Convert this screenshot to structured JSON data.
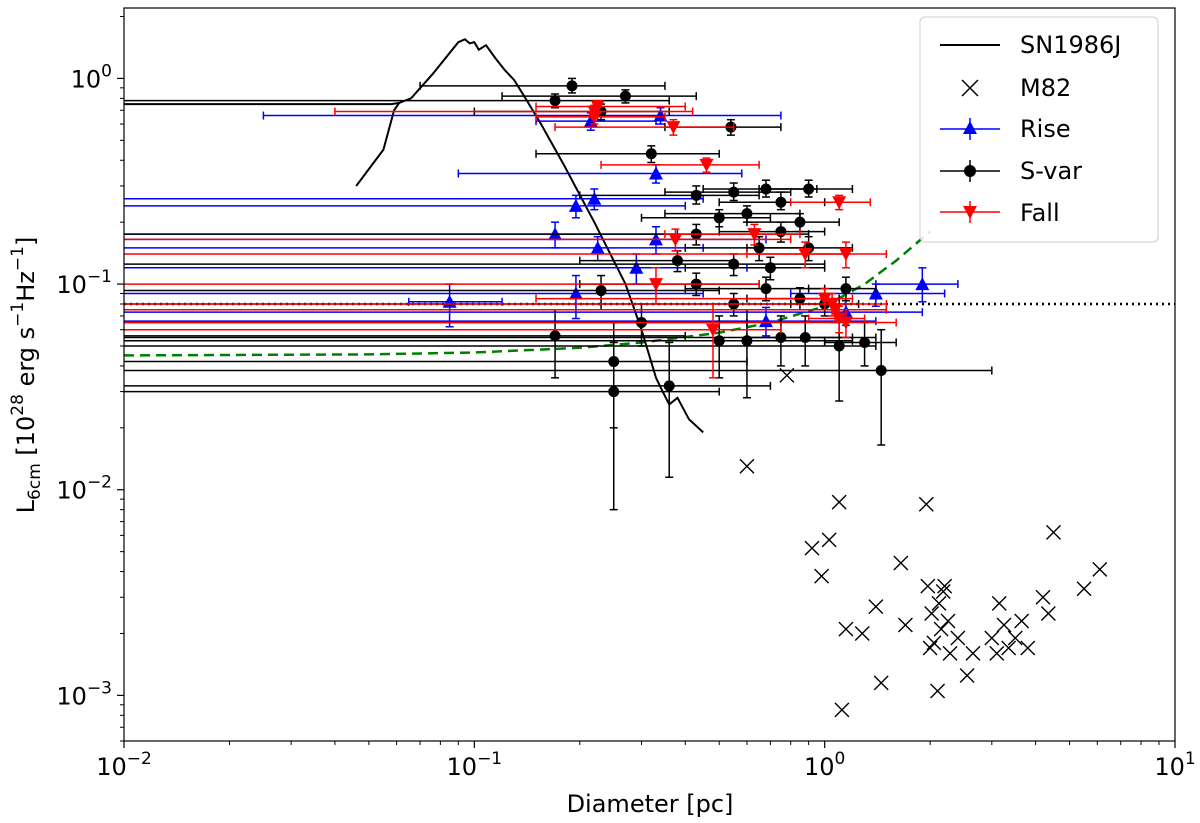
{
  "chart_data": {
    "type": "scatter",
    "title": "",
    "xlabel": "Diameter [pc]",
    "ylabel": "L6cm [10^28 erg s^-1 Hz^-1]",
    "ylabel_parts": {
      "L": "L",
      "sub": "6cm",
      "open": " [10",
      "exp1": "28",
      "unit1": " erg s",
      "exp2": "−1",
      "unit2": "Hz",
      "exp3": "−1",
      "close": "]"
    },
    "xscale": "log",
    "yscale": "log",
    "xlim": [
      0.01,
      10
    ],
    "ylim": [
      0.0006,
      2.2
    ],
    "x_ticks": [
      {
        "value": 0.01,
        "base": "10",
        "exp": "−2"
      },
      {
        "value": 0.1,
        "base": "10",
        "exp": "−1"
      },
      {
        "value": 1,
        "base": "10",
        "exp": "0"
      },
      {
        "value": 10,
        "base": "10",
        "exp": "1"
      }
    ],
    "y_ticks": [
      {
        "value": 0.001,
        "base": "10",
        "exp": "−3"
      },
      {
        "value": 0.01,
        "base": "10",
        "exp": "−2"
      },
      {
        "value": 0.1,
        "base": "10",
        "exp": "−1"
      },
      {
        "value": 1,
        "base": "10",
        "exp": "0"
      }
    ],
    "legend": {
      "placement": "top-right",
      "entries": [
        {
          "label": "SN1986J",
          "kind": "line",
          "color": "#000000"
        },
        {
          "label": "M82",
          "kind": "x",
          "color": "#000000"
        },
        {
          "label": "Rise",
          "kind": "triangle-up",
          "color": "#0000ff"
        },
        {
          "label": "S-var",
          "kind": "circle",
          "color": "#000000"
        },
        {
          "label": "Fall",
          "kind": "triangle-down",
          "color": "#ff0000"
        }
      ]
    },
    "reference_lines": {
      "dotted_horizontal": {
        "y": 0.08,
        "color": "#000000"
      },
      "green_dashed": {
        "color": "#008000",
        "points": [
          [
            0.01,
            0.045
          ],
          [
            0.05,
            0.0455
          ],
          [
            0.1,
            0.0465
          ],
          [
            0.2,
            0.049
          ],
          [
            0.3,
            0.052
          ],
          [
            0.5,
            0.058
          ],
          [
            0.7,
            0.065
          ],
          [
            1.0,
            0.078
          ],
          [
            1.3,
            0.1
          ],
          [
            1.6,
            0.13
          ],
          [
            2.0,
            0.18
          ]
        ]
      }
    },
    "series": [
      {
        "name": "SN1986J",
        "type": "line",
        "color": "#000000",
        "x": [
          0.01,
          0.058,
          0.061,
          0.066,
          0.076,
          0.09,
          0.094,
          0.097,
          0.1,
          0.103,
          0.108,
          0.115,
          0.122,
          0.13,
          0.14,
          0.155,
          0.18,
          0.22,
          0.27,
          0.3,
          0.33,
          0.345,
          0.36,
          0.38,
          0.41,
          0.45
        ],
        "y": [
          0.75,
          0.75,
          0.76,
          0.8,
          1.05,
          1.5,
          1.55,
          1.48,
          1.5,
          1.38,
          1.45,
          1.25,
          1.1,
          0.98,
          0.8,
          0.6,
          0.38,
          0.2,
          0.1,
          0.06,
          0.035,
          0.03,
          0.026,
          0.028,
          0.022,
          0.019
        ]
      },
      {
        "name": "SN1986J-early",
        "type": "line",
        "color": "#000000",
        "x": [
          0.046,
          0.055,
          0.059,
          0.061
        ],
        "y": [
          0.3,
          0.45,
          0.7,
          0.76
        ]
      },
      {
        "name": "M82",
        "type": "x",
        "color": "#000000",
        "x": [
          0.6,
          0.78,
          0.92,
          0.98,
          1.03,
          1.1,
          1.15,
          1.28,
          1.4,
          1.45,
          1.65,
          1.7,
          1.95,
          1.97,
          2.0,
          2.02,
          2.05,
          2.1,
          2.12,
          2.15,
          2.18,
          2.2,
          2.25,
          2.28,
          2.4,
          2.55,
          2.65,
          3.0,
          3.1,
          3.15,
          3.25,
          3.35,
          3.5,
          3.65,
          3.8,
          4.2,
          4.35,
          4.5,
          5.5,
          6.1,
          1.12
        ],
        "y": [
          0.013,
          0.036,
          0.0052,
          0.0038,
          0.0057,
          0.0087,
          0.0021,
          0.002,
          0.0027,
          0.00115,
          0.0044,
          0.0022,
          0.0085,
          0.0034,
          0.0017,
          0.0025,
          0.0018,
          0.00105,
          0.0028,
          0.0021,
          0.0032,
          0.0034,
          0.0023,
          0.0016,
          0.0019,
          0.00125,
          0.0016,
          0.0019,
          0.0016,
          0.0028,
          0.0022,
          0.0017,
          0.0019,
          0.0023,
          0.0017,
          0.003,
          0.0025,
          0.0062,
          0.0033,
          0.0041,
          0.00085
        ]
      },
      {
        "name": "Rise",
        "type": "errorbar",
        "marker": "triangle-up",
        "color": "#0000ff",
        "points": [
          {
            "x": 0.34,
            "y": 0.66,
            "xlo": 0.025,
            "xhi": 0.75,
            "ylo": 0.6,
            "yhi": 0.72
          },
          {
            "x": 0.215,
            "y": 0.62,
            "xlo": 0.15,
            "xhi": 0.33,
            "ylo": 0.56,
            "yhi": 0.68
          },
          {
            "x": 0.33,
            "y": 0.345,
            "xlo": 0.09,
            "xhi": 0.58,
            "ylo": 0.31,
            "yhi": 0.38
          },
          {
            "x": 0.22,
            "y": 0.26,
            "xlo": 0.01,
            "xhi": 0.45,
            "ylo": 0.23,
            "yhi": 0.29
          },
          {
            "x": 0.195,
            "y": 0.24,
            "xlo": 0.01,
            "xhi": 0.4,
            "ylo": 0.21,
            "yhi": 0.27
          },
          {
            "x": 0.17,
            "y": 0.175,
            "xlo": 0.01,
            "xhi": 0.38,
            "ylo": 0.15,
            "yhi": 0.2
          },
          {
            "x": 0.225,
            "y": 0.15,
            "xlo": 0.01,
            "xhi": 0.45,
            "ylo": 0.13,
            "yhi": 0.17
          },
          {
            "x": 0.33,
            "y": 0.165,
            "xlo": 0.01,
            "xhi": 0.68,
            "ylo": 0.14,
            "yhi": 0.19
          },
          {
            "x": 0.29,
            "y": 0.12,
            "xlo": 0.01,
            "xhi": 0.6,
            "ylo": 0.1,
            "yhi": 0.14
          },
          {
            "x": 0.085,
            "y": 0.082,
            "xlo": 0.065,
            "xhi": 0.12,
            "ylo": 0.062,
            "yhi": 0.1
          },
          {
            "x": 0.195,
            "y": 0.09,
            "xlo": 0.01,
            "xhi": 0.45,
            "ylo": 0.068,
            "yhi": 0.11
          },
          {
            "x": 0.68,
            "y": 0.066,
            "xlo": 0.01,
            "xhi": 1.4,
            "ylo": 0.056,
            "yhi": 0.077
          },
          {
            "x": 1.4,
            "y": 0.09,
            "xlo": 0.8,
            "xhi": 2.2,
            "ylo": 0.078,
            "yhi": 0.1
          },
          {
            "x": 1.9,
            "y": 0.1,
            "xlo": 1.4,
            "xhi": 2.4,
            "ylo": 0.082,
            "yhi": 0.12
          },
          {
            "x": 1.15,
            "y": 0.073,
            "xlo": 0.01,
            "xhi": 1.9,
            "ylo": 0.063,
            "yhi": 0.083
          }
        ]
      },
      {
        "name": "S-var",
        "type": "errorbar",
        "marker": "circle",
        "color": "#000000",
        "points": [
          {
            "x": 0.19,
            "y": 0.92,
            "xlo": 0.07,
            "xhi": 0.35,
            "ylo": 0.85,
            "yhi": 1.0
          },
          {
            "x": 0.27,
            "y": 0.82,
            "xlo": 0.12,
            "xhi": 0.43,
            "ylo": 0.76,
            "yhi": 0.88
          },
          {
            "x": 0.17,
            "y": 0.78,
            "xlo": 0.01,
            "xhi": 0.36,
            "ylo": 0.72,
            "yhi": 0.84
          },
          {
            "x": 0.23,
            "y": 0.69,
            "xlo": 0.1,
            "xhi": 0.36,
            "ylo": 0.63,
            "yhi": 0.75
          },
          {
            "x": 0.54,
            "y": 0.58,
            "xlo": 0.35,
            "xhi": 0.75,
            "ylo": 0.53,
            "yhi": 0.63
          },
          {
            "x": 0.32,
            "y": 0.43,
            "xlo": 0.15,
            "xhi": 0.5,
            "ylo": 0.39,
            "yhi": 0.47
          },
          {
            "x": 0.43,
            "y": 0.27,
            "xlo": 0.2,
            "xhi": 0.65,
            "ylo": 0.245,
            "yhi": 0.3
          },
          {
            "x": 0.55,
            "y": 0.28,
            "xlo": 0.35,
            "xhi": 0.8,
            "ylo": 0.255,
            "yhi": 0.31
          },
          {
            "x": 0.68,
            "y": 0.29,
            "xlo": 0.45,
            "xhi": 0.95,
            "ylo": 0.265,
            "yhi": 0.32
          },
          {
            "x": 0.9,
            "y": 0.29,
            "xlo": 0.65,
            "xhi": 1.2,
            "ylo": 0.265,
            "yhi": 0.32
          },
          {
            "x": 0.75,
            "y": 0.25,
            "xlo": 0.5,
            "xhi": 1.0,
            "ylo": 0.23,
            "yhi": 0.28
          },
          {
            "x": 0.6,
            "y": 0.22,
            "xlo": 0.35,
            "xhi": 0.85,
            "ylo": 0.2,
            "yhi": 0.24
          },
          {
            "x": 0.5,
            "y": 0.21,
            "xlo": 0.3,
            "xhi": 0.7,
            "ylo": 0.19,
            "yhi": 0.23
          },
          {
            "x": 0.85,
            "y": 0.2,
            "xlo": 0.6,
            "xhi": 1.1,
            "ylo": 0.18,
            "yhi": 0.22
          },
          {
            "x": 0.43,
            "y": 0.175,
            "xlo": 0.01,
            "xhi": 0.9,
            "ylo": 0.155,
            "yhi": 0.195
          },
          {
            "x": 0.75,
            "y": 0.18,
            "xlo": 0.5,
            "xhi": 1.0,
            "ylo": 0.16,
            "yhi": 0.2
          },
          {
            "x": 0.65,
            "y": 0.15,
            "xlo": 0.4,
            "xhi": 0.9,
            "ylo": 0.13,
            "yhi": 0.17
          },
          {
            "x": 0.9,
            "y": 0.15,
            "xlo": 0.6,
            "xhi": 1.2,
            "ylo": 0.13,
            "yhi": 0.17
          },
          {
            "x": 0.55,
            "y": 0.125,
            "xlo": 0.01,
            "xhi": 1.0,
            "ylo": 0.11,
            "yhi": 0.14
          },
          {
            "x": 0.38,
            "y": 0.13,
            "xlo": 0.2,
            "xhi": 0.55,
            "ylo": 0.115,
            "yhi": 0.145
          },
          {
            "x": 0.7,
            "y": 0.12,
            "xlo": 0.4,
            "xhi": 1.0,
            "ylo": 0.105,
            "yhi": 0.135
          },
          {
            "x": 0.23,
            "y": 0.093,
            "xlo": 0.01,
            "xhi": 0.5,
            "ylo": 0.075,
            "yhi": 0.11
          },
          {
            "x": 0.43,
            "y": 0.1,
            "xlo": 0.2,
            "xhi": 0.65,
            "ylo": 0.088,
            "yhi": 0.113
          },
          {
            "x": 0.68,
            "y": 0.095,
            "xlo": 0.4,
            "xhi": 1.0,
            "ylo": 0.083,
            "yhi": 0.108
          },
          {
            "x": 0.85,
            "y": 0.085,
            "xlo": 0.6,
            "xhi": 1.1,
            "ylo": 0.075,
            "yhi": 0.096
          },
          {
            "x": 1.15,
            "y": 0.095,
            "xlo": 0.9,
            "xhi": 1.4,
            "ylo": 0.083,
            "yhi": 0.108
          },
          {
            "x": 0.55,
            "y": 0.08,
            "xlo": 0.01,
            "xhi": 1.0,
            "ylo": 0.07,
            "yhi": 0.09
          },
          {
            "x": 0.3,
            "y": 0.065,
            "xlo": 0.01,
            "xhi": 0.6,
            "ylo": 0.05,
            "yhi": 0.08
          },
          {
            "x": 0.17,
            "y": 0.056,
            "xlo": 0.01,
            "xhi": 0.4,
            "ylo": 0.035,
            "yhi": 0.075
          },
          {
            "x": 0.5,
            "y": 0.053,
            "xlo": 0.01,
            "xhi": 1.0,
            "ylo": 0.035,
            "yhi": 0.07
          },
          {
            "x": 0.6,
            "y": 0.053,
            "xlo": 0.01,
            "xhi": 1.2,
            "ylo": 0.028,
            "yhi": 0.075
          },
          {
            "x": 0.75,
            "y": 0.055,
            "xlo": 0.01,
            "xhi": 1.4,
            "ylo": 0.04,
            "yhi": 0.07
          },
          {
            "x": 0.88,
            "y": 0.055,
            "xlo": 0.6,
            "xhi": 1.2,
            "ylo": 0.04,
            "yhi": 0.07
          },
          {
            "x": 1.1,
            "y": 0.05,
            "xlo": 0.01,
            "xhi": 1.4,
            "ylo": 0.027,
            "yhi": 0.072
          },
          {
            "x": 1.3,
            "y": 0.052,
            "xlo": 1.0,
            "xhi": 1.6,
            "ylo": 0.04,
            "yhi": 0.065
          },
          {
            "x": 0.25,
            "y": 0.042,
            "xlo": 0.01,
            "xhi": 0.6,
            "ylo": 0.02,
            "yhi": 0.065
          },
          {
            "x": 0.25,
            "y": 0.03,
            "xlo": 0.01,
            "xhi": 0.5,
            "ylo": 0.008,
            "yhi": 0.052
          },
          {
            "x": 0.36,
            "y": 0.032,
            "xlo": 0.01,
            "xhi": 0.7,
            "ylo": 0.0115,
            "yhi": 0.052
          },
          {
            "x": 1.45,
            "y": 0.038,
            "xlo": 0.01,
            "xhi": 3.0,
            "ylo": 0.0165,
            "yhi": 0.06
          },
          {
            "x": 1.0,
            "y": 0.08,
            "xlo": 0.8,
            "xhi": 1.25,
            "ylo": 0.07,
            "yhi": 0.09
          }
        ]
      },
      {
        "name": "Fall",
        "type": "errorbar",
        "marker": "triangle-down",
        "color": "#ff0000",
        "points": [
          {
            "x": 0.225,
            "y": 0.73,
            "xlo": 0.15,
            "xhi": 0.4,
            "ylo": 0.68,
            "yhi": 0.78
          },
          {
            "x": 0.22,
            "y": 0.69,
            "xlo": 0.04,
            "xhi": 0.42,
            "ylo": 0.64,
            "yhi": 0.74
          },
          {
            "x": 0.22,
            "y": 0.65,
            "xlo": 0.15,
            "xhi": 0.35,
            "ylo": 0.6,
            "yhi": 0.7
          },
          {
            "x": 0.37,
            "y": 0.58,
            "xlo": 0.17,
            "xhi": 0.55,
            "ylo": 0.53,
            "yhi": 0.63
          },
          {
            "x": 0.46,
            "y": 0.38,
            "xlo": 0.23,
            "xhi": 0.65,
            "ylo": 0.35,
            "yhi": 0.41
          },
          {
            "x": 1.1,
            "y": 0.25,
            "xlo": 0.8,
            "xhi": 1.35,
            "ylo": 0.23,
            "yhi": 0.27
          },
          {
            "x": 0.375,
            "y": 0.165,
            "xlo": 0.01,
            "xhi": 0.8,
            "ylo": 0.145,
            "yhi": 0.185
          },
          {
            "x": 0.63,
            "y": 0.175,
            "xlo": 0.35,
            "xhi": 0.85,
            "ylo": 0.155,
            "yhi": 0.195
          },
          {
            "x": 0.88,
            "y": 0.14,
            "xlo": 0.6,
            "xhi": 1.15,
            "ylo": 0.12,
            "yhi": 0.16
          },
          {
            "x": 1.15,
            "y": 0.14,
            "xlo": 0.01,
            "xhi": 1.5,
            "ylo": 0.12,
            "yhi": 0.16
          },
          {
            "x": 0.33,
            "y": 0.1,
            "xlo": 0.01,
            "xhi": 0.65,
            "ylo": 0.08,
            "yhi": 0.12
          },
          {
            "x": 1.0,
            "y": 0.085,
            "xlo": 0.15,
            "xhi": 1.2,
            "ylo": 0.075,
            "yhi": 0.095
          },
          {
            "x": 1.05,
            "y": 0.08,
            "xlo": 0.01,
            "xhi": 1.5,
            "ylo": 0.07,
            "yhi": 0.09
          },
          {
            "x": 1.07,
            "y": 0.075,
            "xlo": 0.01,
            "xhi": 1.5,
            "ylo": 0.065,
            "yhi": 0.085
          },
          {
            "x": 1.1,
            "y": 0.068,
            "xlo": 0.9,
            "xhi": 1.3,
            "ylo": 0.058,
            "yhi": 0.078
          },
          {
            "x": 1.15,
            "y": 0.065,
            "xlo": 0.01,
            "xhi": 1.6,
            "ylo": 0.055,
            "yhi": 0.075
          },
          {
            "x": 0.48,
            "y": 0.06,
            "xlo": 0.01,
            "xhi": 0.75,
            "ylo": 0.035,
            "yhi": 0.08
          }
        ]
      }
    ]
  }
}
